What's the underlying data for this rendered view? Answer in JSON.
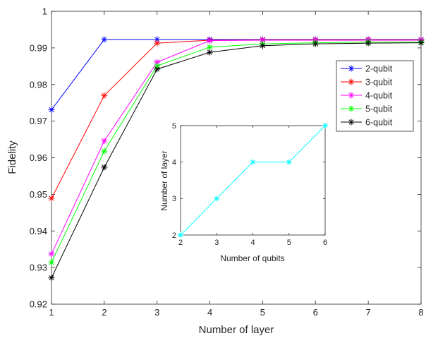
{
  "chart_data": [
    {
      "type": "line",
      "marker": "asterisk",
      "xlabel": "Number of layer",
      "ylabel": "Fidelity",
      "xlim": [
        1,
        8
      ],
      "ylim": [
        0.92,
        1
      ],
      "xticks": [
        "1",
        "2",
        "3",
        "4",
        "5",
        "6",
        "7",
        "8"
      ],
      "yticks": [
        "0.92",
        "0.93",
        "0.94",
        "0.95",
        "0.96",
        "0.97",
        "0.98",
        "0.99",
        "1"
      ],
      "x": [
        1,
        2,
        3,
        4,
        5,
        6,
        7,
        8
      ],
      "grid": false,
      "legend_position": "top-right",
      "series": [
        {
          "name": "2-qubit",
          "color": "#0000ff",
          "values": [
            0.9731,
            0.9923,
            0.9923,
            0.9923,
            0.9923,
            0.9923,
            0.9923,
            0.9923
          ]
        },
        {
          "name": "3-qubit",
          "color": "#ff0000",
          "values": [
            0.9489,
            0.977,
            0.9913,
            0.9921,
            0.9922,
            0.9922,
            0.9922,
            0.9922
          ]
        },
        {
          "name": "4-qubit",
          "color": "#ff00ff",
          "values": [
            0.9337,
            0.9646,
            0.9861,
            0.992,
            0.9921,
            0.9921,
            0.9921,
            0.9921
          ]
        },
        {
          "name": "5-qubit",
          "color": "#00ff00",
          "values": [
            0.9314,
            0.9618,
            0.9851,
            0.9902,
            0.9911,
            0.9914,
            0.9916,
            0.9916
          ]
        },
        {
          "name": "6-qubit",
          "color": "#000000",
          "values": [
            0.9272,
            0.9574,
            0.9842,
            0.9888,
            0.9906,
            0.9911,
            0.9913,
            0.9914
          ]
        }
      ]
    },
    {
      "type": "line",
      "marker": "asterisk",
      "xlabel": "Number of qubits",
      "ylabel": "Number of layer",
      "xlim": [
        2,
        6
      ],
      "ylim": [
        2,
        5
      ],
      "xticks": [
        "2",
        "3",
        "4",
        "5",
        "6"
      ],
      "yticks": [
        "2",
        "3",
        "4",
        "5"
      ],
      "grid": false,
      "series": [
        {
          "color": "#00ffff",
          "x": [
            2,
            3,
            4,
            5,
            6
          ],
          "values": [
            2,
            3,
            4,
            4,
            5
          ]
        }
      ]
    }
  ]
}
